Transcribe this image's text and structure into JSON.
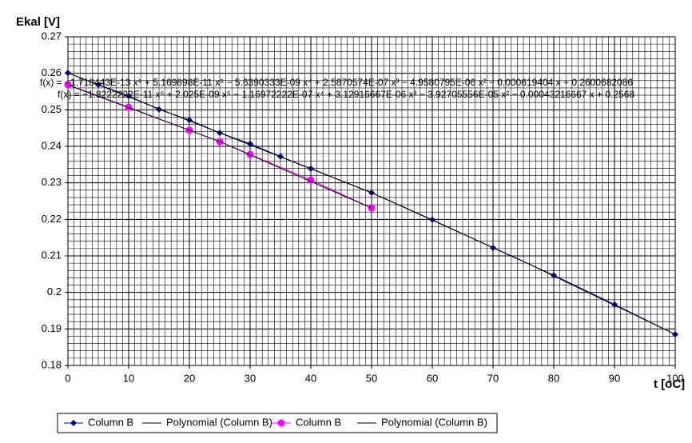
{
  "chart_data": {
    "type": "line",
    "y_label": "Ekal [V]",
    "x_label": "t [oC]",
    "xlim": [
      0,
      100
    ],
    "xticks": [
      0,
      10,
      20,
      30,
      40,
      50,
      60,
      70,
      80,
      90,
      100
    ],
    "ylim": [
      0.18,
      0.27
    ],
    "yticks": [
      0.18,
      0.19,
      0.2,
      0.21,
      0.22,
      0.23,
      0.24,
      0.25,
      0.26,
      0.27
    ],
    "grid": true,
    "minor_grid": {
      "x": 1,
      "y": 0.002
    },
    "legend": "bottom",
    "annotations": [
      "f(x) = −1.718443E-13 x⁶ + 5.169898E-11 x⁵ − 5.6390333E-09 x⁴ + 2.5870574E-07 x³ − 4.9580795E-06 x² − 0.000619404 x + 0.2600682086",
      "f(x) = −1.8222222E-11 x⁶ + 2.025E-09 x⁵ − 1.16972222E-07 x⁴ + 3.12916667E-06 x³ − 3.92705556E-05 x² − 0.00043216667 x + 0.2568"
    ],
    "series": [
      {
        "name": "Column B",
        "color": "#000080",
        "marker": "diamond",
        "x": [
          0,
          5,
          10,
          15,
          20,
          25,
          30,
          35,
          40,
          50,
          60,
          70,
          80,
          90,
          100
        ],
        "values": [
          0.2601,
          0.2569,
          0.2538,
          0.2501,
          0.2472,
          0.2437,
          0.2407,
          0.2372,
          0.2339,
          0.2273,
          0.2199,
          0.2122,
          0.2047,
          0.1967,
          0.1885
        ]
      },
      {
        "name": "Polynomial (Column B)",
        "color": "#000000",
        "marker": null,
        "x": [
          0,
          25,
          50,
          75,
          100
        ],
        "values": [
          0.2601,
          0.2437,
          0.2273,
          0.2085,
          0.1885
        ]
      },
      {
        "name": "Column B",
        "color": "#ff00ff",
        "marker": "circle",
        "x": [
          0,
          10,
          20,
          25,
          30,
          40,
          50
        ],
        "values": [
          0.2569,
          0.2507,
          0.2444,
          0.2413,
          0.2378,
          0.2308,
          0.2231
        ]
      },
      {
        "name": "Polynomial (Column B)",
        "color": "#000000",
        "marker": null,
        "x": [
          0,
          25,
          50
        ],
        "values": [
          0.2568,
          0.2413,
          0.2231
        ]
      }
    ]
  }
}
